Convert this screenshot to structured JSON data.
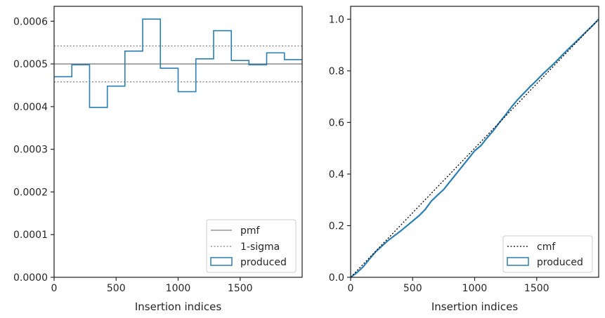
{
  "chart_data": [
    {
      "type": "histogram-step",
      "xlabel": "Insertion indices",
      "ylabel": "",
      "xlim": [
        0,
        2000
      ],
      "ylim": [
        0,
        0.000635
      ],
      "x_ticks": [
        0,
        500,
        1000,
        1500
      ],
      "y_ticks": [
        0.0,
        0.0001,
        0.0002,
        0.0003,
        0.0004,
        0.0005,
        0.0006
      ],
      "y_tick_labels": [
        "0.0000",
        "0.0001",
        "0.0002",
        "0.0003",
        "0.0004",
        "0.0005",
        "0.0006"
      ],
      "legend_position": "lower-right",
      "pmf": {
        "name": "pmf",
        "value": 0.0005,
        "color": "#808080"
      },
      "sigma": {
        "name": "1-sigma",
        "values": [
          0.000458,
          0.000542
        ],
        "color": "#808080"
      },
      "produced": {
        "name": "produced",
        "color": "#2a7fb4",
        "bin_edges": [
          0,
          143,
          286,
          429,
          571,
          714,
          857,
          1000,
          1143,
          1286,
          1429,
          1571,
          1714,
          1857,
          2000
        ],
        "values": [
          0.00047,
          0.000498,
          0.000398,
          0.000448,
          0.00053,
          0.000605,
          0.00049,
          0.000435,
          0.000512,
          0.000578,
          0.000508,
          0.000498,
          0.000526,
          0.00051
        ]
      }
    },
    {
      "type": "line",
      "xlabel": "Insertion indices",
      "ylabel": "",
      "xlim": [
        0,
        2000
      ],
      "ylim": [
        0,
        1.05
      ],
      "x_ticks": [
        0,
        500,
        1000,
        1500
      ],
      "y_ticks": [
        0.0,
        0.2,
        0.4,
        0.6,
        0.8,
        1.0
      ],
      "y_tick_labels": [
        "0.0",
        "0.2",
        "0.4",
        "0.6",
        "0.8",
        "1.0"
      ],
      "legend_position": "lower-right",
      "cmf": {
        "name": "cmf",
        "x": [
          0,
          2000
        ],
        "y": [
          0,
          1.0
        ],
        "color": "#000000"
      },
      "produced": {
        "name": "produced",
        "color": "#2a7fb4",
        "x": [
          0,
          50,
          100,
          150,
          200,
          250,
          300,
          350,
          400,
          450,
          500,
          550,
          600,
          650,
          700,
          750,
          800,
          850,
          900,
          950,
          1000,
          1050,
          1100,
          1150,
          1200,
          1250,
          1300,
          1350,
          1400,
          1450,
          1500,
          1550,
          1600,
          1650,
          1700,
          1750,
          1800,
          1850,
          1900,
          1950,
          2000
        ],
        "y": [
          0,
          0.018,
          0.04,
          0.07,
          0.098,
          0.12,
          0.142,
          0.16,
          0.178,
          0.198,
          0.218,
          0.238,
          0.262,
          0.295,
          0.318,
          0.34,
          0.37,
          0.4,
          0.43,
          0.46,
          0.49,
          0.51,
          0.54,
          0.568,
          0.6,
          0.63,
          0.662,
          0.69,
          0.715,
          0.74,
          0.763,
          0.788,
          0.81,
          0.833,
          0.858,
          0.882,
          0.905,
          0.928,
          0.952,
          0.975,
          1.0
        ]
      }
    }
  ]
}
